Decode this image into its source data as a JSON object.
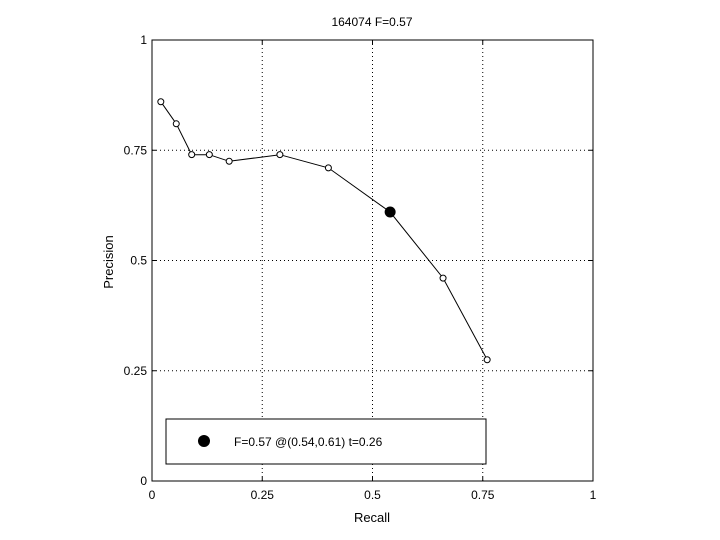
{
  "chart_data": {
    "type": "line",
    "title": "164074 F=0.57",
    "xlabel": "Recall",
    "ylabel": "Precision",
    "xlim": [
      0,
      1
    ],
    "ylim": [
      0,
      1
    ],
    "grid": true,
    "grid_style": "dotted",
    "xticks": [
      0,
      0.25,
      0.5,
      0.75,
      1
    ],
    "yticks": [
      0,
      0.25,
      0.5,
      0.75,
      1
    ],
    "xtick_labels": [
      "0",
      "0.25",
      "0.5",
      "0.75",
      "1"
    ],
    "ytick_labels": [
      "0",
      "0.25",
      "0.5",
      "0.75",
      "1"
    ],
    "series": [
      {
        "x": [
          0.02,
          0.055,
          0.09,
          0.13,
          0.175,
          0.29,
          0.4,
          0.54,
          0.66,
          0.76
        ],
        "y": [
          0.86,
          0.81,
          0.74,
          0.74,
          0.725,
          0.74,
          0.71,
          0.61,
          0.46,
          0.275
        ],
        "marker": "open-circle",
        "color": "#000000"
      }
    ],
    "highlight_point": {
      "x": 0.54,
      "y": 0.61,
      "marker": "filled-circle",
      "color": "#000000"
    },
    "legend": {
      "text": "F=0.57 @(0.54,0.61) t=0.26",
      "placement": "bottom",
      "marker": "filled-circle"
    }
  }
}
